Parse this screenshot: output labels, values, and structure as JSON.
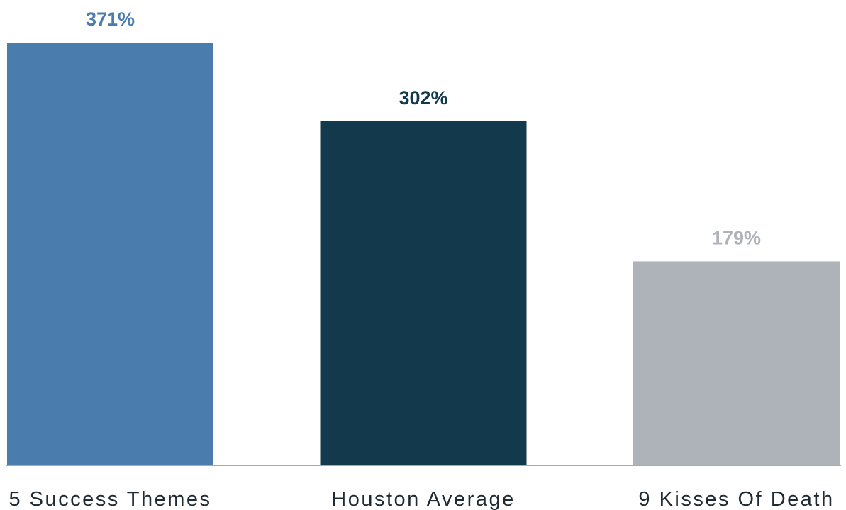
{
  "chart_data": {
    "type": "bar",
    "title": "",
    "xlabel": "",
    "ylabel": "",
    "categories": [
      "5 Success Themes",
      "Houston Average",
      "9 Kisses Of Death"
    ],
    "values": [
      371,
      302,
      179
    ],
    "value_labels": [
      "371%",
      "302%",
      "179%"
    ],
    "colors": [
      "#4a7cad",
      "#133a4c",
      "#aeb2b9"
    ],
    "ylim": [
      0,
      400
    ],
    "grid": false,
    "legend": "none",
    "baseline_color": "#a6abb1"
  }
}
